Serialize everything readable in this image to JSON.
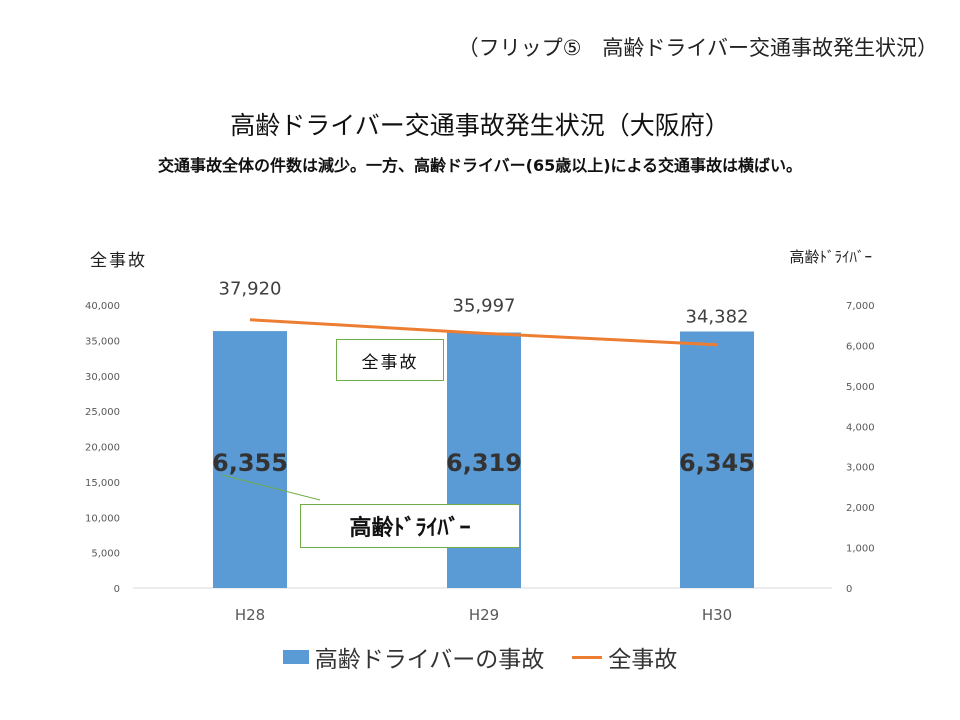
{
  "header": {
    "flip_label": "（フリップ⑤　高齢ドライバー交通事故発生状況）",
    "title": "高齢ドライバー交通事故発生状況（大阪府）",
    "subtitle": "交通事故全体の件数は減少。一方、高齢ドライバー(65歳以上)による交通事故は横ばい。"
  },
  "callouts": {
    "all_accidents": "全事故",
    "elderly_drivers": "高齢ﾄﾞﾗｲﾊﾞｰ"
  },
  "legend": {
    "bar": "高齢ドライバーの事故",
    "line": "全事故"
  },
  "colors": {
    "bar": "#5b9bd5",
    "line": "#ed7d31",
    "callout_border": "#70ad47"
  },
  "chart_data": {
    "type": "bar",
    "categories": [
      "H28",
      "H29",
      "H30"
    ],
    "y_left_label": "全事故",
    "y_right_label": "高齢ﾄﾞﾗｲﾊﾞｰ",
    "y_left_ticks": [
      "0",
      "5,000",
      "10,000",
      "15,000",
      "20,000",
      "25,000",
      "30,000",
      "35,000",
      "40,000"
    ],
    "y_right_ticks": [
      "0",
      "1,000",
      "2,000",
      "3,000",
      "4,000",
      "5,000",
      "6,000",
      "7,000"
    ],
    "ylim_left": [
      0,
      40000
    ],
    "ylim_right": [
      0,
      7000
    ],
    "series": [
      {
        "name": "高齢ドライバーの事故",
        "kind": "bar",
        "axis": "right",
        "values": [
          6355,
          6319,
          6345
        ],
        "labels": [
          "6,355",
          "6,319",
          "6,345"
        ]
      },
      {
        "name": "全事故",
        "kind": "line",
        "axis": "left",
        "values": [
          37920,
          35997,
          34382
        ],
        "labels": [
          "37,920",
          "35,997",
          "34,382"
        ]
      }
    ],
    "grid": false,
    "legend_position": "bottom"
  }
}
